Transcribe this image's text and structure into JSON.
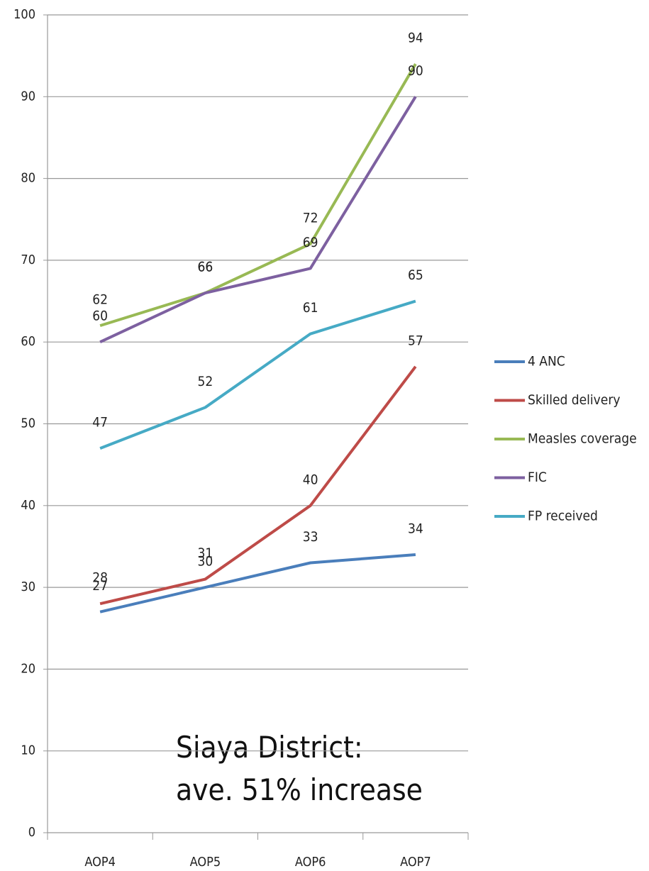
{
  "chart_data": {
    "type": "line",
    "categories": [
      "AOP4",
      "AOP5",
      "AOP6",
      "AOP7"
    ],
    "series": [
      {
        "name": "4 ANC",
        "color": "#4a7ebb",
        "values": [
          27,
          30,
          33,
          34
        ]
      },
      {
        "name": "Skilled delivery",
        "color": "#be4b48",
        "values": [
          28,
          31,
          40,
          57
        ]
      },
      {
        "name": "Measles coverage",
        "color": "#98b954",
        "values": [
          62,
          66,
          72,
          94
        ]
      },
      {
        "name": "FIC",
        "color": "#7d60a0",
        "values": [
          60,
          66,
          69,
          90
        ]
      },
      {
        "name": "FP received",
        "color": "#46aac5",
        "values": [
          47,
          52,
          61,
          65
        ]
      }
    ],
    "ylim": [
      0,
      100
    ],
    "yticks": [
      0,
      10,
      20,
      30,
      40,
      50,
      60,
      70,
      80,
      90,
      100
    ],
    "grid": true,
    "legend": "right",
    "annotations": [
      "Siaya District:",
      "ave. 51% increase"
    ]
  }
}
